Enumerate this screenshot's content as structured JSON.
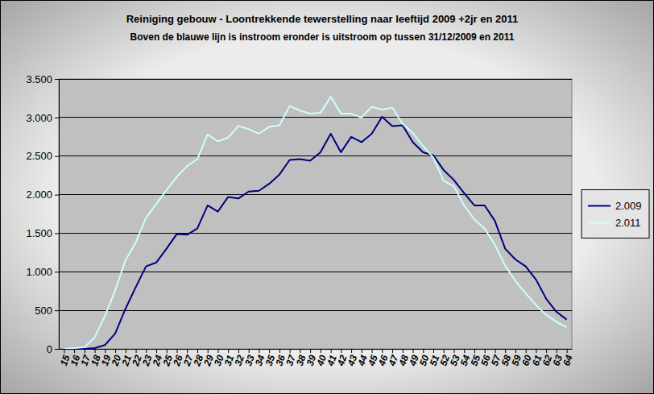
{
  "chart_data": {
    "type": "line",
    "title": "Reiniging gebouw - Loontrekkende tewerstelling naar leeftijd 2009 +2jr en 2011",
    "subtitle": "Boven de blauwe lijn is instroom eronder is uitstroom op tussen 31/12/2009 en 2011",
    "categories": [
      "15",
      "16",
      "17",
      "18",
      "19",
      "20",
      "21",
      "22",
      "23",
      "24",
      "25",
      "26",
      "27",
      "28",
      "29",
      "30",
      "31",
      "32",
      "33",
      "34",
      "35",
      "36",
      "37",
      "38",
      "39",
      "40",
      "41",
      "42",
      "43",
      "44",
      "45",
      "46",
      "47",
      "48",
      "49",
      "50",
      "51",
      "52",
      "53",
      "54",
      "55",
      "56",
      "57",
      "58",
      "59",
      "60",
      "61",
      "62",
      "63",
      "64"
    ],
    "series": [
      {
        "name": "2.009",
        "color": "#000080",
        "values": [
          0,
          0,
          0,
          10,
          50,
          200,
          520,
          800,
          1070,
          1120,
          1300,
          1490,
          1480,
          1560,
          1860,
          1780,
          1970,
          1950,
          2040,
          2050,
          2140,
          2260,
          2450,
          2460,
          2440,
          2550,
          2790,
          2550,
          2750,
          2680,
          2790,
          3010,
          2890,
          2900,
          2680,
          2550,
          2510,
          2320,
          2190,
          2020,
          1860,
          1860,
          1660,
          1300,
          1160,
          1070,
          900,
          650,
          480,
          380
        ]
      },
      {
        "name": "2.011",
        "color": "#ccffff",
        "values": [
          0,
          10,
          20,
          150,
          430,
          760,
          1150,
          1380,
          1700,
          1880,
          2060,
          2230,
          2370,
          2460,
          2780,
          2690,
          2740,
          2890,
          2850,
          2790,
          2880,
          2900,
          3150,
          3090,
          3050,
          3060,
          3270,
          3050,
          3050,
          3000,
          3140,
          3100,
          3130,
          2920,
          2800,
          2630,
          2480,
          2180,
          2110,
          1860,
          1680,
          1560,
          1350,
          1080,
          880,
          720,
          570,
          440,
          350,
          280
        ]
      }
    ],
    "ylim": [
      0,
      3500
    ],
    "yticks": [
      0,
      500,
      {
        "value": 1000,
        "label": "1.000"
      },
      {
        "value": 1500,
        "label": "1.500"
      },
      {
        "value": 2000,
        "label": "2.000"
      },
      {
        "value": 2500,
        "label": "2.500"
      },
      {
        "value": 3000,
        "label": "3.000"
      },
      {
        "value": 3500,
        "label": "3.500"
      }
    ],
    "grid": true,
    "legend": "right"
  }
}
